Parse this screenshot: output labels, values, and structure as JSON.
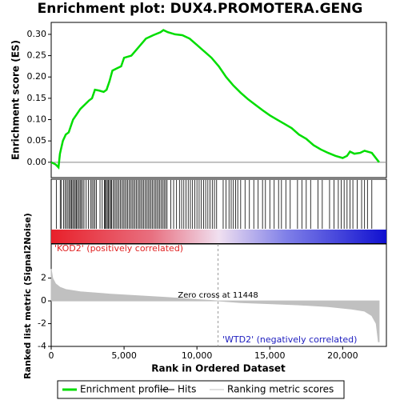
{
  "chart_data": {
    "type": "gsea",
    "title": "Enrichment plot: DUX4.PROMOTERA.GENG",
    "xlabel": "Rank in Ordered Dataset",
    "xlim": [
      0,
      23000
    ],
    "xticks": [
      0,
      {
        "value": 5000,
        "label": "5,000"
      },
      {
        "value": 10000,
        "label": "10,000"
      },
      {
        "value": 15000,
        "label": "15,000"
      },
      {
        "value": 20000,
        "label": "20,000"
      }
    ],
    "es": {
      "ylabel": "Enrichment score (ES)",
      "color": "#00dd00",
      "ylim": [
        -0.036,
        0.328
      ],
      "yticks": [
        {
          "value": 0,
          "label": "0.00"
        },
        {
          "value": 0.05,
          "label": "0.05"
        },
        {
          "value": 0.1,
          "label": "0.10"
        },
        {
          "value": 0.15,
          "label": "0.15"
        },
        {
          "value": 0.2,
          "label": "0.20"
        },
        {
          "value": 0.25,
          "label": "0.25"
        },
        {
          "value": 0.3,
          "label": "0.30"
        }
      ],
      "x": [
        0,
        300,
        500,
        600,
        800,
        1000,
        1200,
        1500,
        1800,
        2000,
        2300,
        2600,
        2800,
        3000,
        3300,
        3600,
        3800,
        4000,
        4200,
        4500,
        4800,
        5000,
        5500,
        6000,
        6500,
        7000,
        7500,
        7700,
        8000,
        8500,
        9000,
        9500,
        10000,
        10500,
        11000,
        11500,
        12000,
        12500,
        13000,
        13500,
        14000,
        14500,
        15000,
        15500,
        16000,
        16500,
        17000,
        17500,
        18000,
        18500,
        19000,
        19500,
        20000,
        20300,
        20500,
        20800,
        21200,
        21500,
        22000,
        22500
      ],
      "y": [
        0,
        -0.005,
        -0.012,
        0.02,
        0.05,
        0.065,
        0.07,
        0.1,
        0.115,
        0.125,
        0.135,
        0.145,
        0.15,
        0.17,
        0.168,
        0.165,
        0.17,
        0.19,
        0.215,
        0.22,
        0.225,
        0.245,
        0.25,
        0.27,
        0.29,
        0.298,
        0.305,
        0.31,
        0.305,
        0.3,
        0.298,
        0.29,
        0.275,
        0.26,
        0.245,
        0.225,
        0.2,
        0.18,
        0.163,
        0.148,
        0.135,
        0.122,
        0.11,
        0.1,
        0.09,
        0.08,
        0.065,
        0.055,
        0.04,
        0.03,
        0.022,
        0.015,
        0.01,
        0.015,
        0.025,
        0.02,
        0.022,
        0.027,
        0.022,
        0
      ]
    },
    "hits": [
      350,
      620,
      700,
      850,
      950,
      1050,
      1150,
      1250,
      1320,
      1400,
      1480,
      1560,
      1650,
      1720,
      1800,
      1900,
      1980,
      2050,
      2150,
      2250,
      2400,
      2550,
      2700,
      2800,
      2900,
      3000,
      3100,
      3350,
      3500,
      3650,
      3700,
      3780,
      3850,
      3920,
      4000,
      4080,
      4150,
      4250,
      4350,
      4450,
      4550,
      4650,
      4750,
      4850,
      4950,
      5050,
      5150,
      5250,
      5350,
      5450,
      5550,
      5650,
      5750,
      5850,
      5950,
      6050,
      6150,
      6250,
      6350,
      6450,
      6550,
      6650,
      6750,
      6850,
      6950,
      7050,
      7150,
      7250,
      7350,
      7450,
      7550,
      7650,
      7750,
      7850,
      7950,
      8200,
      8400,
      8600,
      8800,
      8950,
      9100,
      9250,
      9400,
      9550,
      9700,
      9850,
      10000,
      10150,
      10300,
      10450,
      10600,
      10750,
      10900,
      11050,
      11200,
      11350,
      11800,
      12000,
      12200,
      12350,
      12500,
      12650,
      12800,
      13000,
      13300,
      13600,
      13900,
      14200,
      14500,
      14700,
      15000,
      15300,
      15600,
      15800,
      16100,
      16400,
      16900,
      17200,
      17500,
      17800,
      18300,
      18600,
      19100,
      19400,
      19700,
      19900,
      20100,
      20300,
      20500,
      20700,
      21000,
      21300,
      21500,
      21700,
      22000
    ],
    "metric": {
      "ylabel": "Ranked list metric (Signal2Noise)",
      "color": "#c0c0c0",
      "ylim": [
        -4,
        5
      ],
      "yticks": [
        -4,
        -2,
        0,
        2
      ],
      "x": [
        0,
        100,
        300,
        600,
        1000,
        2000,
        4000,
        6000,
        8000,
        10000,
        11448,
        13000,
        15000,
        17000,
        19000,
        20500,
        21500,
        22000,
        22300,
        22450,
        22500
      ],
      "y": [
        2.8,
        2.0,
        1.5,
        1.2,
        1.0,
        0.8,
        0.6,
        0.45,
        0.3,
        0.12,
        0,
        -0.15,
        -0.25,
        -0.35,
        -0.5,
        -0.7,
        -0.9,
        -1.3,
        -2.0,
        -3.6,
        -3.6
      ],
      "zero_cross": 11448,
      "zero_cross_label": "Zero cross at 11448",
      "pos_label": "'KOD2' (positively correlated)",
      "neg_label": "'WTD2' (negatively correlated)"
    },
    "legend": [
      "Enrichment profile",
      "Hits",
      "Ranking metric scores"
    ]
  }
}
